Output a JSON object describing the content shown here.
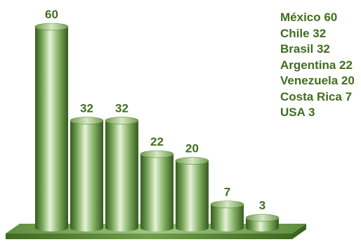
{
  "chart_data": {
    "type": "bar",
    "categories": [
      "México",
      "Chile",
      "Brasil",
      "Argentina",
      "Venezuela",
      "Costa Rica",
      "USA"
    ],
    "values": [
      60,
      32,
      32,
      22,
      20,
      7,
      3
    ],
    "title": "",
    "xlabel": "",
    "ylabel": "",
    "ylim": [
      0,
      60
    ],
    "grid": false,
    "legend_position": "top-right",
    "legend": [
      "México 60",
      "Chile 32",
      "Brasil 32",
      "Argentina 22",
      "Venezuela 20",
      "Costa Rica 7",
      "USA 3"
    ],
    "colors": {
      "bar_dark": "#345a1c",
      "bar_mid": "#8ab66a",
      "bar_light": "#e6f2d8",
      "base_top": "#7fa85c",
      "base_front": "#5a8a36",
      "text": "#3f6e1e"
    }
  }
}
